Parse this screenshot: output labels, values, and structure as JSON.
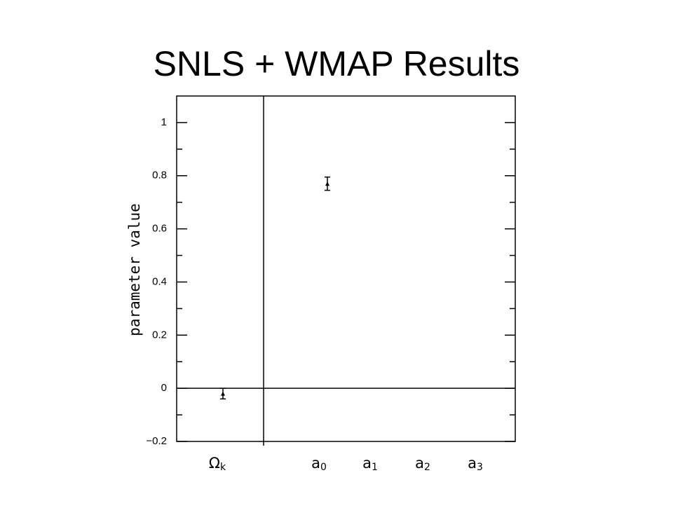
{
  "slide_title": "SNLS + WMAP Results",
  "chart_data": {
    "type": "errorbar",
    "ylabel": "parameter value",
    "categories": [
      "Ωk",
      "a0",
      "a1",
      "a2",
      "a3"
    ],
    "values": [
      -0.02,
      0.77,
      null,
      null,
      null
    ],
    "errors": [
      0.02,
      0.025,
      null,
      null,
      null
    ],
    "ylim": [
      -0.2,
      1.1
    ],
    "yticks": [
      {
        "value": -0.2,
        "label": "−0.2"
      },
      0,
      0.2,
      0.4,
      0.6,
      0.8,
      1
    ],
    "minor_yticks": [
      -0.1,
      0.1,
      0.3,
      0.5,
      0.7,
      0.9
    ],
    "hline": 0,
    "color": "#000000"
  }
}
